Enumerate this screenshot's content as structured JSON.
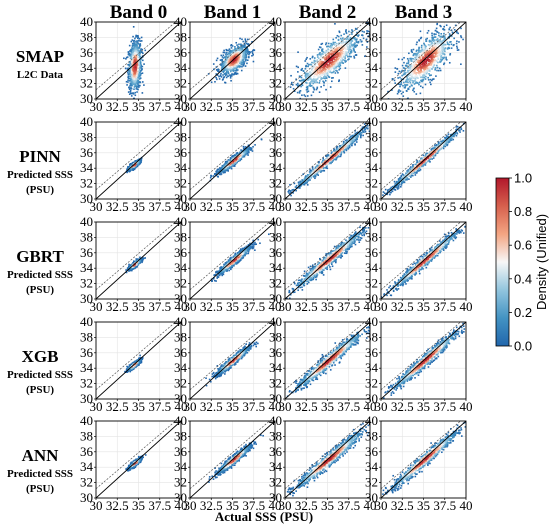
{
  "chart_data": {
    "type": "scatter",
    "layout": "grid",
    "columns": [
      "Band 0",
      "Band 1",
      "Band 2",
      "Band 3"
    ],
    "rows": [
      {
        "name": "SMAP",
        "sub": [
          "L2C Data"
        ]
      },
      {
        "name": "PINN",
        "sub": [
          "Predicted SSS",
          "(PSU)"
        ]
      },
      {
        "name": "GBRT",
        "sub": [
          "Predicted SSS",
          "(PSU)"
        ]
      },
      {
        "name": "XGB",
        "sub": [
          "Predicted SSS",
          "(PSU)"
        ]
      },
      {
        "name": "ANN",
        "sub": [
          "Predicted SSS",
          "(PSU)"
        ]
      }
    ],
    "xlabel": "Actual SSS (PSU)",
    "xlim": [
      30,
      40
    ],
    "ylim": [
      30,
      40
    ],
    "xticks": [
      "30",
      "32.5",
      "35",
      "37.5",
      "40"
    ],
    "yticks": [
      "30",
      "32",
      "34",
      "36",
      "38",
      "40"
    ],
    "colorbar": {
      "label": "Density (Unified)",
      "range": [
        0.0,
        1.0
      ],
      "ticks": [
        "0.0",
        "0.2",
        "0.4",
        "0.6",
        "0.8",
        "1.0"
      ],
      "colormap": [
        "#2166ac",
        "#4393c3",
        "#92c5de",
        "#f7f7f7",
        "#f4a582",
        "#d6604d",
        "#b2182b"
      ]
    },
    "reference_lines": [
      "identity",
      "regression"
    ],
    "grid": true,
    "panels": [
      [
        {
          "cx": 34.6,
          "cy": 34.3,
          "sx": 0.38,
          "sy": 1.6,
          "rho": 0.15
        },
        {
          "cx": 35.2,
          "cy": 35.1,
          "sx": 0.8,
          "sy": 0.95,
          "rho": 0.55
        },
        {
          "cx": 35.2,
          "cy": 35.0,
          "sx": 1.85,
          "sy": 1.95,
          "rho": 0.8
        },
        {
          "cx": 35.3,
          "cy": 35.0,
          "sx": 1.6,
          "sy": 1.9,
          "rho": 0.72
        }
      ],
      [
        {
          "cx": 34.5,
          "cy": 34.4,
          "sx": 0.35,
          "sy": 0.32,
          "rho": 0.85
        },
        {
          "cx": 35.2,
          "cy": 35.0,
          "sx": 0.9,
          "sy": 0.8,
          "rho": 0.94
        },
        {
          "cx": 35.3,
          "cy": 35.2,
          "sx": 2.0,
          "sy": 1.9,
          "rho": 0.985
        },
        {
          "cx": 35.2,
          "cy": 35.1,
          "sx": 1.9,
          "sy": 1.85,
          "rho": 0.985
        }
      ],
      [
        {
          "cx": 34.6,
          "cy": 34.5,
          "sx": 0.36,
          "sy": 0.34,
          "rho": 0.88
        },
        {
          "cx": 35.2,
          "cy": 35.0,
          "sx": 0.95,
          "sy": 0.9,
          "rho": 0.95
        },
        {
          "cx": 35.2,
          "cy": 35.1,
          "sx": 1.95,
          "sy": 1.85,
          "rho": 0.975
        },
        {
          "cx": 35.2,
          "cy": 35.0,
          "sx": 1.9,
          "sy": 1.85,
          "rho": 0.98
        }
      ],
      [
        {
          "cx": 34.5,
          "cy": 34.4,
          "sx": 0.36,
          "sy": 0.34,
          "rho": 0.88
        },
        {
          "cx": 35.1,
          "cy": 35.0,
          "sx": 0.95,
          "sy": 0.9,
          "rho": 0.95
        },
        {
          "cx": 35.2,
          "cy": 35.0,
          "sx": 1.95,
          "sy": 1.85,
          "rho": 0.97
        },
        {
          "cx": 35.2,
          "cy": 35.0,
          "sx": 1.9,
          "sy": 1.85,
          "rho": 0.975
        }
      ],
      [
        {
          "cx": 34.6,
          "cy": 34.5,
          "sx": 0.35,
          "sy": 0.33,
          "rho": 0.88
        },
        {
          "cx": 35.2,
          "cy": 35.0,
          "sx": 0.95,
          "sy": 0.9,
          "rho": 0.95
        },
        {
          "cx": 35.2,
          "cy": 35.0,
          "sx": 1.95,
          "sy": 1.85,
          "rho": 0.97
        },
        {
          "cx": 35.2,
          "cy": 35.0,
          "sx": 1.9,
          "sy": 1.85,
          "rho": 0.975
        }
      ]
    ]
  }
}
